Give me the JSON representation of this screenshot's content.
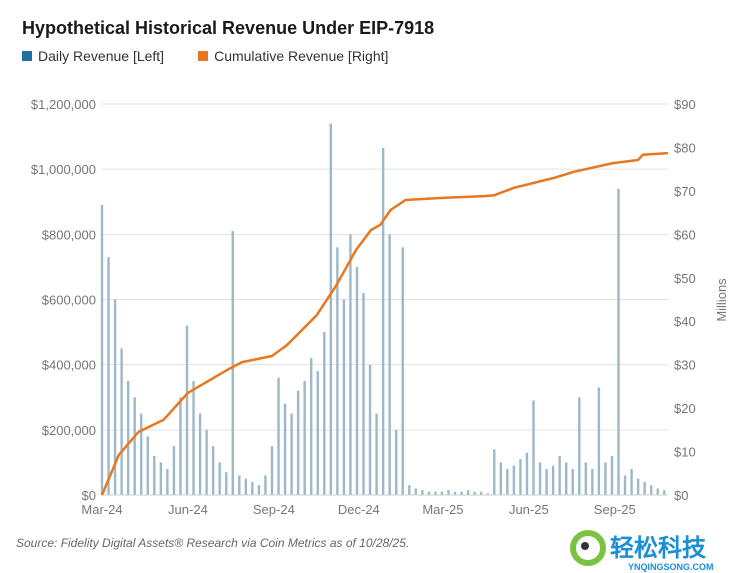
{
  "title": "Hypothetical Historical Revenue Under EIP-7918",
  "source": "Source: Fidelity Digital Assets® Research via Coin Metrics as of 10/28/25.",
  "watermark": {
    "text": "轻松科技",
    "sub": "YNQINGSONG.COM"
  },
  "chart_data": {
    "type": "bar+line",
    "title": "Hypothetical Historical Revenue Under EIP-7918",
    "legend_placement": "top-left",
    "grid": true,
    "x_ticks": [
      {
        "label": "Mar-24",
        "date": "2024-03-01"
      },
      {
        "label": "Jun-24",
        "date": "2024-06-01"
      },
      {
        "label": "Sep-24",
        "date": "2024-09-01"
      },
      {
        "label": "Dec-24",
        "date": "2024-12-01"
      },
      {
        "label": "Mar-25",
        "date": "2025-03-01"
      },
      {
        "label": "Jun-25",
        "date": "2025-06-01"
      },
      {
        "label": "Sep-25",
        "date": "2025-09-01"
      }
    ],
    "xlim": [
      "2024-03-01",
      "2025-10-28"
    ],
    "left_axis": {
      "ylim": [
        0,
        1200000
      ],
      "ticks": [
        "$0",
        "$200,000",
        "$400,000",
        "$600,000",
        "$800,000",
        "$1,000,000",
        "$1,200,000"
      ]
    },
    "right_axis": {
      "label": "Millions",
      "ylim": [
        0,
        90
      ],
      "ticks": [
        "$0",
        "$10",
        "$20",
        "$30",
        "$40",
        "$50",
        "$60",
        "$70",
        "$80",
        "$90"
      ]
    },
    "series": [
      {
        "name": "Daily Revenue [Left]",
        "kind": "bar",
        "color": "#1f6f9f",
        "bar_color": "#9db8c9",
        "dates": [
          "2024-03-01",
          "2024-03-08",
          "2024-03-15",
          "2024-03-22",
          "2024-03-29",
          "2024-04-05",
          "2024-04-12",
          "2024-04-19",
          "2024-04-26",
          "2024-05-03",
          "2024-05-10",
          "2024-05-17",
          "2024-05-24",
          "2024-05-31",
          "2024-06-07",
          "2024-06-14",
          "2024-06-21",
          "2024-06-28",
          "2024-07-05",
          "2024-07-12",
          "2024-07-19",
          "2024-07-26",
          "2024-08-02",
          "2024-08-09",
          "2024-08-16",
          "2024-08-23",
          "2024-08-30",
          "2024-09-06",
          "2024-09-13",
          "2024-09-20",
          "2024-09-27",
          "2024-10-04",
          "2024-10-11",
          "2024-10-18",
          "2024-10-25",
          "2024-11-01",
          "2024-11-08",
          "2024-11-15",
          "2024-11-22",
          "2024-11-29",
          "2024-12-06",
          "2024-12-13",
          "2024-12-20",
          "2024-12-27",
          "2025-01-03",
          "2025-01-10",
          "2025-01-17",
          "2025-01-24",
          "2025-01-31",
          "2025-02-07",
          "2025-02-14",
          "2025-02-21",
          "2025-02-28",
          "2025-03-07",
          "2025-03-14",
          "2025-03-21",
          "2025-03-28",
          "2025-04-04",
          "2025-04-11",
          "2025-04-18",
          "2025-04-25",
          "2025-05-02",
          "2025-05-09",
          "2025-05-16",
          "2025-05-23",
          "2025-05-30",
          "2025-06-06",
          "2025-06-13",
          "2025-06-20",
          "2025-06-27",
          "2025-07-04",
          "2025-07-11",
          "2025-07-18",
          "2025-07-25",
          "2025-08-01",
          "2025-08-08",
          "2025-08-15",
          "2025-08-22",
          "2025-08-29",
          "2025-09-05",
          "2025-09-12",
          "2025-09-19",
          "2025-09-26",
          "2025-10-03",
          "2025-10-10",
          "2025-10-17",
          "2025-10-24"
        ],
        "values": [
          890000,
          730000,
          600000,
          450000,
          350000,
          300000,
          250000,
          180000,
          120000,
          100000,
          80000,
          150000,
          300000,
          520000,
          350000,
          250000,
          200000,
          150000,
          100000,
          70000,
          810000,
          60000,
          50000,
          40000,
          30000,
          60000,
          150000,
          360000,
          280000,
          250000,
          320000,
          350000,
          420000,
          380000,
          500000,
          1140000,
          760000,
          600000,
          800000,
          700000,
          620000,
          400000,
          250000,
          1065000,
          800000,
          200000,
          760000,
          30000,
          20000,
          15000,
          10000,
          10000,
          10000,
          15000,
          10000,
          10000,
          15000,
          10000,
          10000,
          5000,
          140000,
          100000,
          80000,
          90000,
          110000,
          130000,
          290000,
          100000,
          80000,
          90000,
          120000,
          100000,
          80000,
          300000,
          100000,
          80000,
          330000,
          100000,
          120000,
          940000,
          60000,
          80000,
          50000,
          40000,
          30000,
          20000,
          15000
        ]
      },
      {
        "name": "Cumulative Revenue [Right]",
        "kind": "line",
        "color": "#e8771e",
        "dates": [
          "2024-03-01",
          "2024-03-19",
          "2024-04-09",
          "2024-05-06",
          "2024-06-01",
          "2024-07-13",
          "2024-07-29",
          "2024-08-30",
          "2024-09-15",
          "2024-10-17",
          "2024-11-07",
          "2024-11-28",
          "2024-12-14",
          "2024-12-24",
          "2025-01-04",
          "2025-01-20",
          "2025-03-03",
          "2025-04-15",
          "2025-04-25",
          "2025-05-16",
          "2025-06-28",
          "2025-07-19",
          "2025-08-30",
          "2025-09-26",
          "2025-10-01",
          "2025-10-28"
        ],
        "values": [
          0,
          9.2,
          14.5,
          17.3,
          23.5,
          28.8,
          30.6,
          32,
          34.5,
          41.4,
          48.3,
          56.4,
          61,
          62.2,
          65.6,
          67.9,
          68.4,
          68.8,
          69,
          70.7,
          73,
          74.4,
          76.4,
          77.1,
          78.3,
          78.7
        ]
      }
    ]
  }
}
